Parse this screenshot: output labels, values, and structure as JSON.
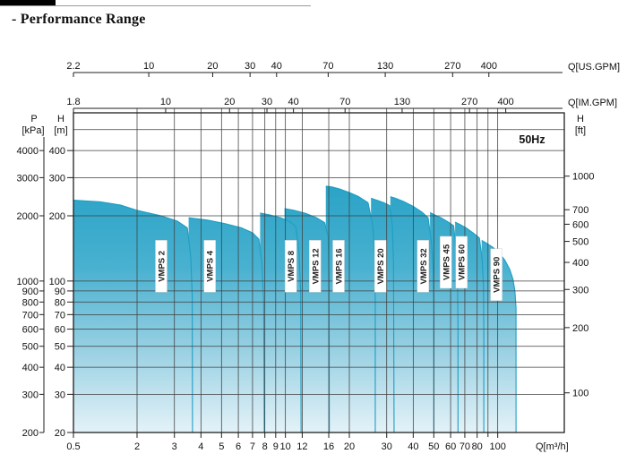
{
  "page": {
    "title": "- Performance Range"
  },
  "chart_data": {
    "type": "area",
    "title": "Performance Range",
    "frequency_label": "50Hz",
    "axes": {
      "x_bottom": {
        "label": "Q[m³/h]",
        "ticks": [
          0.5,
          2,
          3,
          4,
          5,
          6,
          7,
          8,
          9,
          10,
          12,
          16,
          20,
          30,
          40,
          50,
          60,
          70,
          80,
          100
        ],
        "unlabeled_ticks": [
          90
        ],
        "scale": "log"
      },
      "x_top_us": {
        "label": "Q[US.GPM]",
        "ticks": [
          2.2,
          10,
          20,
          30,
          40,
          70,
          130,
          270,
          400
        ]
      },
      "x_top_im": {
        "label": "Q[IM.GPM]",
        "ticks": [
          1.8,
          10,
          20,
          30,
          40,
          70,
          130,
          270,
          400
        ]
      },
      "y_left_kpa": {
        "label_line1": "P",
        "label_line2": "[kPa]",
        "ticks": [
          4000,
          3000,
          2000,
          1000,
          900,
          800,
          700,
          600,
          500,
          400,
          300,
          200
        ]
      },
      "y_left_m": {
        "label_line1": "H",
        "label_line2": "[m]",
        "ticks": [
          400,
          300,
          200,
          100,
          90,
          80,
          70,
          60,
          50,
          40,
          30,
          20
        ],
        "scale": "log"
      },
      "y_right_ft": {
        "label_line1": "H",
        "label_line2": "[ft]",
        "ticks": [
          1000,
          700,
          600,
          500,
          400,
          300,
          200,
          100
        ]
      },
      "h_gridlines_m": [
        500,
        400,
        300,
        200,
        100,
        90,
        80,
        70,
        60,
        50,
        40,
        30
      ],
      "x_range_m3h": [
        0.5,
        206
      ],
      "y_range_m": [
        20,
        592
      ]
    },
    "series": [
      {
        "name": "VMPS 2",
        "label_q": 2.6,
        "label_h": 117,
        "points": [
          [
            0.5,
            236
          ],
          [
            0.9,
            232
          ],
          [
            1.4,
            224
          ],
          [
            2,
            212
          ],
          [
            2.6,
            200
          ],
          [
            3.1,
            189
          ],
          [
            3.45,
            176
          ],
          [
            3.58,
            130
          ],
          [
            3.64,
            85
          ],
          [
            3.65,
            20
          ]
        ]
      },
      {
        "name": "VMPS 4",
        "label_q": 4.4,
        "label_h": 117,
        "points": [
          [
            3.5,
            196
          ],
          [
            4.3,
            191
          ],
          [
            5.2,
            184
          ],
          [
            6.2,
            176
          ],
          [
            7,
            167
          ],
          [
            7.5,
            156
          ],
          [
            7.75,
            120
          ],
          [
            7.9,
            80
          ],
          [
            7.95,
            20
          ]
        ]
      },
      {
        "name": "VMPS 8",
        "label_q": 10.6,
        "label_h": 117,
        "points": [
          [
            7.6,
            206
          ],
          [
            8.4,
            202
          ],
          [
            9.5,
            196
          ],
          [
            10.5,
            188
          ],
          [
            11.2,
            178
          ],
          [
            11.6,
            135
          ],
          [
            11.8,
            90
          ],
          [
            11.85,
            20
          ]
        ]
      },
      {
        "name": "VMPS 12",
        "label_q": 13.8,
        "label_h": 117,
        "points": [
          [
            9.9,
            216
          ],
          [
            11,
            212
          ],
          [
            12.5,
            205
          ],
          [
            14,
            196
          ],
          [
            15.3,
            186
          ],
          [
            15.9,
            160
          ],
          [
            16.05,
            100
          ],
          [
            16.1,
            20
          ]
        ]
      },
      {
        "name": "VMPS 16",
        "label_q": 17.8,
        "label_h": 117,
        "points": [
          [
            15.5,
            274
          ],
          [
            16.5,
            272
          ],
          [
            18,
            266
          ],
          [
            20,
            256
          ],
          [
            22,
            246
          ],
          [
            24.5,
            230
          ],
          [
            25.8,
            180
          ],
          [
            26.3,
            130
          ],
          [
            26.5,
            80
          ],
          [
            26.5,
            20
          ]
        ]
      },
      {
        "name": "VMPS 20",
        "label_q": 28,
        "label_h": 117,
        "points": [
          [
            25.3,
            241
          ],
          [
            27,
            236
          ],
          [
            29,
            230
          ],
          [
            31,
            223
          ],
          [
            31.9,
            180
          ],
          [
            32.3,
            120
          ],
          [
            32.5,
            20
          ]
        ]
      },
      {
        "name": "VMPS 32",
        "label_q": 44.5,
        "label_h": 117,
        "points": [
          [
            31.2,
            245
          ],
          [
            33,
            241
          ],
          [
            36,
            233
          ],
          [
            40,
            221
          ],
          [
            44,
            208
          ],
          [
            47,
            196
          ],
          [
            48.8,
            150
          ],
          [
            49.7,
            110
          ],
          [
            50,
            70
          ],
          [
            50,
            20
          ]
        ]
      },
      {
        "name": "VMPS 45",
        "label_q": 57,
        "label_h": 122,
        "points": [
          [
            48,
            207
          ],
          [
            50,
            203
          ],
          [
            54,
            196
          ],
          [
            58,
            188
          ],
          [
            62,
            180
          ],
          [
            63.8,
            140
          ],
          [
            64.7,
            100
          ],
          [
            65,
            60
          ],
          [
            65,
            20
          ]
        ]
      },
      {
        "name": "VMPS 60",
        "label_q": 67.5,
        "label_h": 122,
        "points": [
          [
            63,
            187
          ],
          [
            66,
            183
          ],
          [
            71,
            176
          ],
          [
            77,
            166
          ],
          [
            82,
            158
          ],
          [
            84.5,
            125
          ],
          [
            85.7,
            95
          ],
          [
            86,
            60
          ],
          [
            86,
            20
          ]
        ]
      },
      {
        "name": "VMPS 90",
        "label_q": 98.5,
        "label_h": 107,
        "points": [
          [
            84,
            154
          ],
          [
            88,
            150
          ],
          [
            95,
            143
          ],
          [
            102,
            134
          ],
          [
            108,
            125
          ],
          [
            114,
            113
          ],
          [
            118,
            102
          ],
          [
            120.5,
            90
          ],
          [
            122,
            75
          ],
          [
            122,
            20
          ]
        ]
      }
    ],
    "colors": {
      "fill_top": "#28a2c6",
      "fill_mid1": "#49b1d0",
      "fill_mid2": "#9ad1e3",
      "fill_bottom": "#e4f2f8",
      "curve_stroke": "#1e9ec4",
      "grid": "#3f3f3f",
      "border": "#1f1f1f",
      "text": "#111111",
      "label_box": "#ffffff"
    }
  }
}
